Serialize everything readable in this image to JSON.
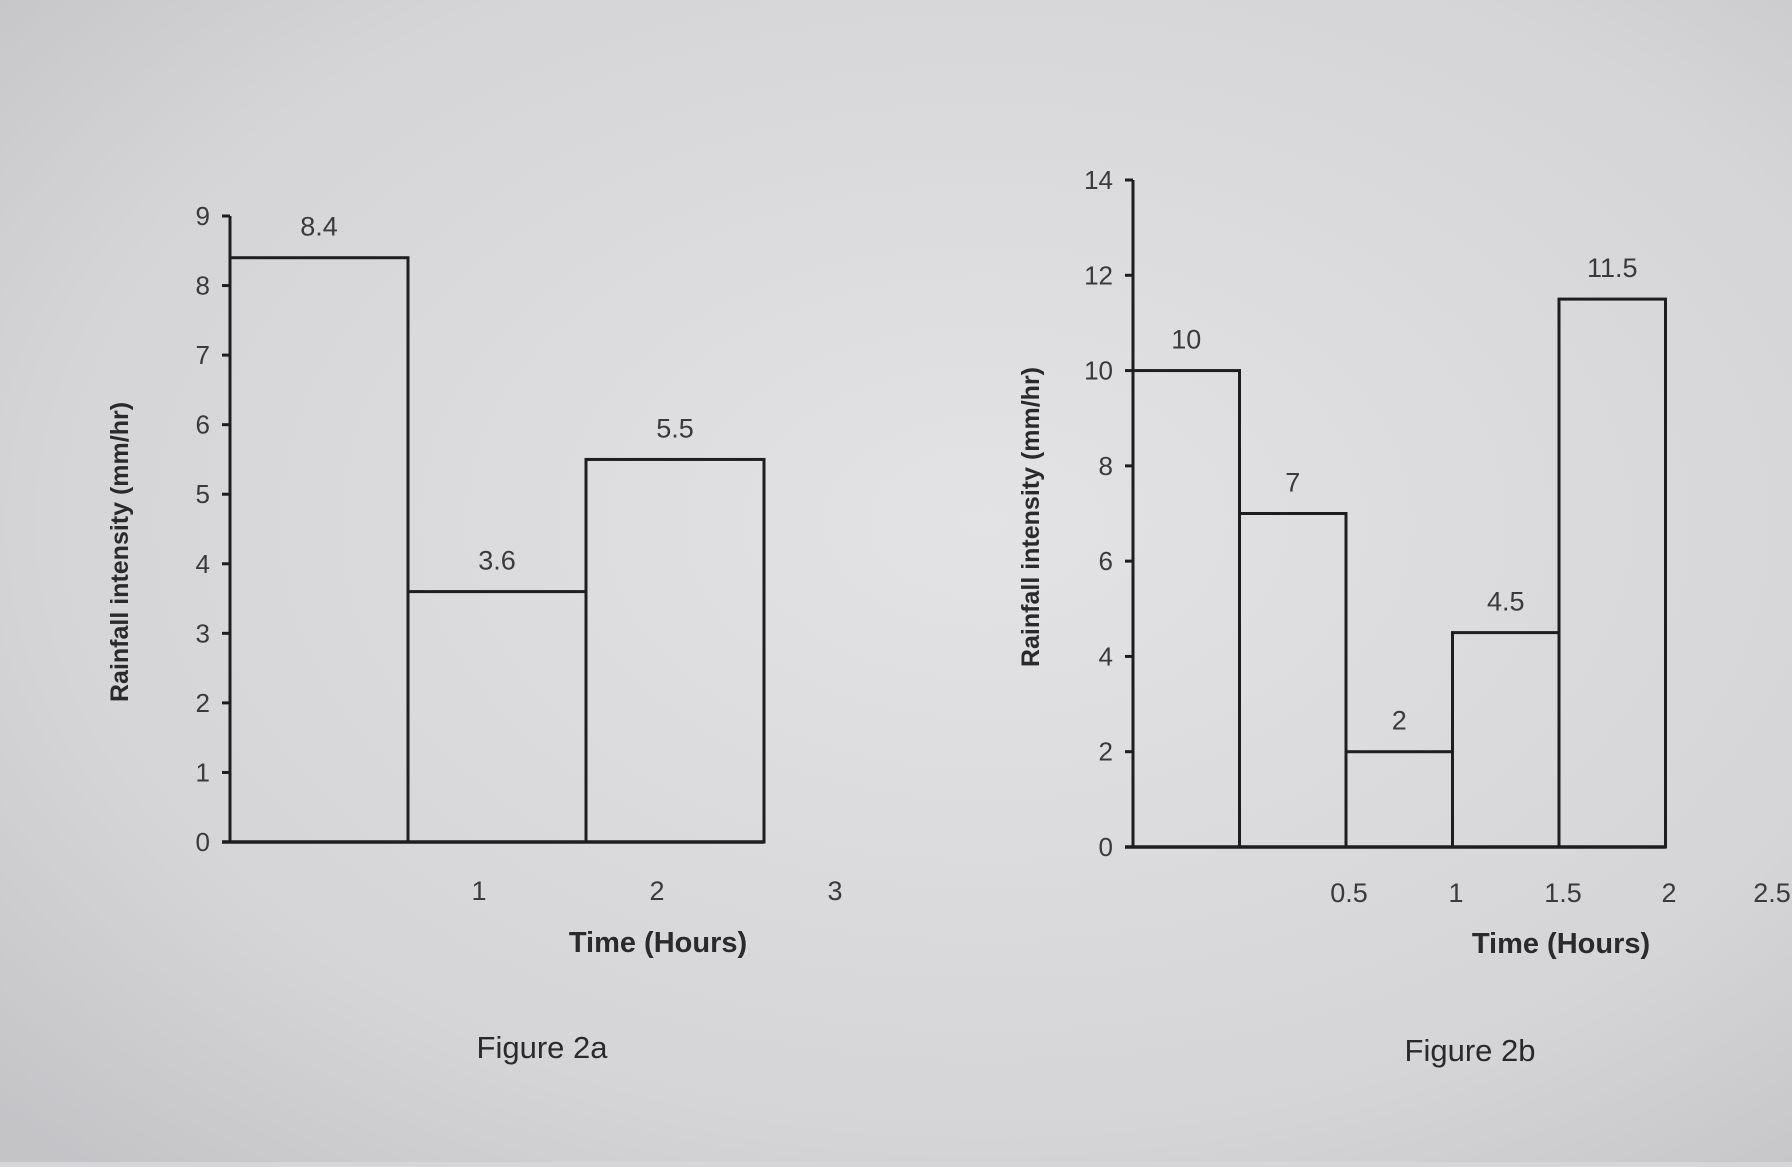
{
  "chart_data": [
    {
      "type": "bar",
      "caption": "Figure 2a",
      "xlabel": "Time (Hours)",
      "ylabel": "Rainfall intensity (mm/hr)",
      "ylim": [
        0,
        9
      ],
      "yticks": [
        "0",
        "1",
        "2",
        "3",
        "4",
        "5",
        "6",
        "7",
        "8",
        "9"
      ],
      "xticks": [
        "1",
        "2",
        "3"
      ],
      "values": [
        8.4,
        3.6,
        5.5
      ],
      "data_labels": [
        "8.4",
        "3.6",
        "5.5"
      ]
    },
    {
      "type": "bar",
      "caption": "Figure 2b",
      "xlabel": "Time (Hours)",
      "ylabel": "Rainfall intensity (mm/hr)",
      "ylim": [
        0,
        14
      ],
      "yticks": [
        "0",
        "2",
        "4",
        "6",
        "8",
        "10",
        "12",
        "14"
      ],
      "xticks": [
        "0.5",
        "1",
        "1.5",
        "2",
        "2.5"
      ],
      "values": [
        10,
        7,
        2,
        4.5,
        11.5
      ],
      "data_labels": [
        "10",
        "7",
        "2",
        "4.5",
        "11.5"
      ]
    }
  ]
}
